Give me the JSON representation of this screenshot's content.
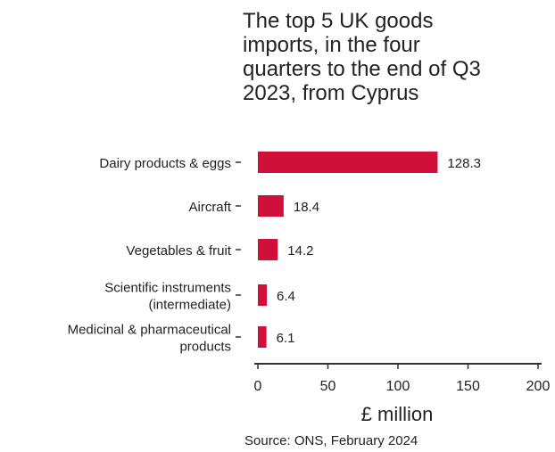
{
  "chart_data": {
    "type": "bar",
    "orientation": "horizontal",
    "title_lines": [
      "The top 5 UK goods",
      "imports, in the four",
      "quarters to the end of Q3",
      "2023, from Cyprus"
    ],
    "categories": [
      [
        "Dairy products & eggs"
      ],
      [
        "Aircraft"
      ],
      [
        "Vegetables & fruit"
      ],
      [
        "Scientific instruments",
        "(intermediate)"
      ],
      [
        "Medicinal & pharmaceutical",
        "products"
      ]
    ],
    "values": [
      128.3,
      18.4,
      14.2,
      6.4,
      6.1
    ],
    "value_labels": [
      "128.3",
      "18.4",
      "14.2",
      "6.4",
      "6.1"
    ],
    "xlabel": "£ million",
    "xlim": [
      0,
      200
    ],
    "x_ticks": [
      0,
      50,
      100,
      150,
      200
    ],
    "grid": false,
    "bar_color": "#d0103a"
  },
  "source": "Source: ONS, February 2024"
}
